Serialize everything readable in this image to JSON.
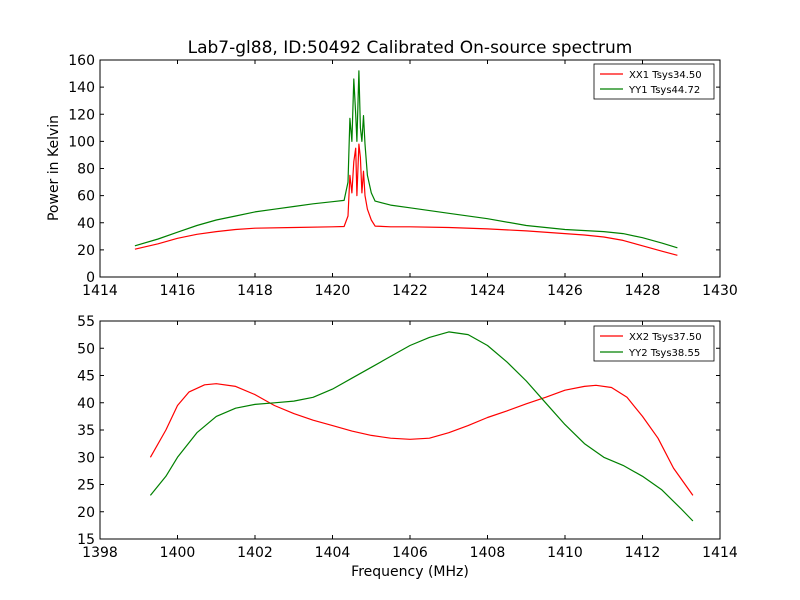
{
  "colors": {
    "red": "#ff0000",
    "green": "#008000"
  },
  "chart_data": [
    {
      "type": "line",
      "title": "Lab7-gl88, ID:50492 Calibrated On-source spectrum",
      "xlabel": "",
      "ylabel": "Power in Kelvin",
      "xlim": [
        1414,
        1430
      ],
      "ylim": [
        0,
        160
      ],
      "xticks": [
        "1414",
        "1416",
        "1418",
        "1420",
        "1422",
        "1424",
        "1426",
        "1428",
        "1430"
      ],
      "yticks": [
        "0",
        "20",
        "40",
        "60",
        "80",
        "100",
        "120",
        "140",
        "160"
      ],
      "legend": "top-right",
      "series": [
        {
          "name": "XX1 Tsys34.50",
          "color": "red",
          "points": [
            [
              1414.9,
              20.5
            ],
            [
              1415.5,
              24.5
            ],
            [
              1416,
              28.5
            ],
            [
              1416.5,
              31.5
            ],
            [
              1417,
              33.5
            ],
            [
              1417.5,
              35
            ],
            [
              1418,
              36
            ],
            [
              1419,
              36.5
            ],
            [
              1420,
              37
            ],
            [
              1420.3,
              37.2
            ],
            [
              1420.4,
              45
            ],
            [
              1420.45,
              75
            ],
            [
              1420.5,
              62
            ],
            [
              1420.55,
              85
            ],
            [
              1420.6,
              95
            ],
            [
              1420.63,
              60
            ],
            [
              1420.68,
              98
            ],
            [
              1420.72,
              88
            ],
            [
              1420.76,
              62
            ],
            [
              1420.8,
              78
            ],
            [
              1420.84,
              60
            ],
            [
              1420.9,
              50
            ],
            [
              1421.0,
              42
            ],
            [
              1421.1,
              37.5
            ],
            [
              1421.5,
              37
            ],
            [
              1422,
              37
            ],
            [
              1423,
              36.5
            ],
            [
              1424,
              35.5
            ],
            [
              1425,
              34
            ],
            [
              1426,
              32
            ],
            [
              1426.5,
              31
            ],
            [
              1427,
              29.5
            ],
            [
              1427.5,
              27
            ],
            [
              1428,
              23
            ],
            [
              1428.5,
              19
            ],
            [
              1428.9,
              16
            ]
          ]
        },
        {
          "name": "YY1 Tsys44.72",
          "color": "green",
          "points": [
            [
              1414.9,
              23
            ],
            [
              1415.5,
              28
            ],
            [
              1416,
              33
            ],
            [
              1416.5,
              38
            ],
            [
              1417,
              42
            ],
            [
              1417.5,
              45
            ],
            [
              1418,
              48
            ],
            [
              1418.5,
              50
            ],
            [
              1419,
              52
            ],
            [
              1419.5,
              54
            ],
            [
              1420,
              55.5
            ],
            [
              1420.3,
              56.5
            ],
            [
              1420.4,
              70
            ],
            [
              1420.45,
              117
            ],
            [
              1420.5,
              100
            ],
            [
              1420.55,
              146
            ],
            [
              1420.6,
              120
            ],
            [
              1420.63,
              100
            ],
            [
              1420.68,
              152
            ],
            [
              1420.72,
              110
            ],
            [
              1420.76,
              100
            ],
            [
              1420.8,
              119
            ],
            [
              1420.84,
              98
            ],
            [
              1420.9,
              75
            ],
            [
              1421.0,
              62
            ],
            [
              1421.1,
              56
            ],
            [
              1421.5,
              53
            ],
            [
              1422,
              51
            ],
            [
              1423,
              47
            ],
            [
              1424,
              43
            ],
            [
              1425,
              38
            ],
            [
              1426,
              35
            ],
            [
              1427,
              33.5
            ],
            [
              1427.5,
              32
            ],
            [
              1428,
              29
            ],
            [
              1428.5,
              25
            ],
            [
              1428.9,
              21.5
            ]
          ]
        }
      ]
    },
    {
      "type": "line",
      "title": "",
      "xlabel": "Frequency (MHz)",
      "ylabel": "",
      "xlim": [
        1398,
        1414
      ],
      "ylim": [
        15,
        55
      ],
      "xticks": [
        "1398",
        "1400",
        "1402",
        "1404",
        "1406",
        "1408",
        "1410",
        "1412",
        "1414"
      ],
      "yticks": [
        "15",
        "20",
        "25",
        "30",
        "35",
        "40",
        "45",
        "50",
        "55"
      ],
      "legend": "top-right",
      "series": [
        {
          "name": "XX2 Tsys37.50",
          "color": "red",
          "points": [
            [
              1399.3,
              30
            ],
            [
              1399.7,
              35
            ],
            [
              1400,
              39.5
            ],
            [
              1400.3,
              42
            ],
            [
              1400.7,
              43.3
            ],
            [
              1401,
              43.5
            ],
            [
              1401.5,
              43
            ],
            [
              1402,
              41.5
            ],
            [
              1402.5,
              39.5
            ],
            [
              1403,
              38
            ],
            [
              1403.5,
              36.8
            ],
            [
              1404,
              35.8
            ],
            [
              1404.5,
              34.8
            ],
            [
              1405,
              34
            ],
            [
              1405.5,
              33.5
            ],
            [
              1406,
              33.3
            ],
            [
              1406.5,
              33.5
            ],
            [
              1407,
              34.5
            ],
            [
              1407.5,
              35.8
            ],
            [
              1408,
              37.3
            ],
            [
              1408.5,
              38.5
            ],
            [
              1409,
              39.8
            ],
            [
              1409.5,
              41
            ],
            [
              1410,
              42.3
            ],
            [
              1410.5,
              43
            ],
            [
              1410.8,
              43.2
            ],
            [
              1411.2,
              42.8
            ],
            [
              1411.6,
              41
            ],
            [
              1412,
              37.5
            ],
            [
              1412.4,
              33.5
            ],
            [
              1412.8,
              28
            ],
            [
              1413.3,
              23
            ]
          ]
        },
        {
          "name": "YY2 Tsys38.55",
          "color": "green",
          "points": [
            [
              1399.3,
              23
            ],
            [
              1399.7,
              26.5
            ],
            [
              1400,
              30
            ],
            [
              1400.5,
              34.5
            ],
            [
              1401,
              37.5
            ],
            [
              1401.5,
              39
            ],
            [
              1402,
              39.7
            ],
            [
              1402.5,
              40
            ],
            [
              1403,
              40.3
            ],
            [
              1403.5,
              41
            ],
            [
              1404,
              42.5
            ],
            [
              1404.5,
              44.5
            ],
            [
              1405,
              46.5
            ],
            [
              1405.5,
              48.5
            ],
            [
              1406,
              50.5
            ],
            [
              1406.5,
              52
            ],
            [
              1407,
              53
            ],
            [
              1407.5,
              52.5
            ],
            [
              1408,
              50.5
            ],
            [
              1408.5,
              47.5
            ],
            [
              1409,
              44
            ],
            [
              1409.5,
              40
            ],
            [
              1410,
              36
            ],
            [
              1410.5,
              32.5
            ],
            [
              1411,
              30
            ],
            [
              1411.5,
              28.5
            ],
            [
              1412,
              26.5
            ],
            [
              1412.5,
              24
            ],
            [
              1413,
              20.5
            ],
            [
              1413.3,
              18.3
            ]
          ]
        }
      ]
    }
  ]
}
